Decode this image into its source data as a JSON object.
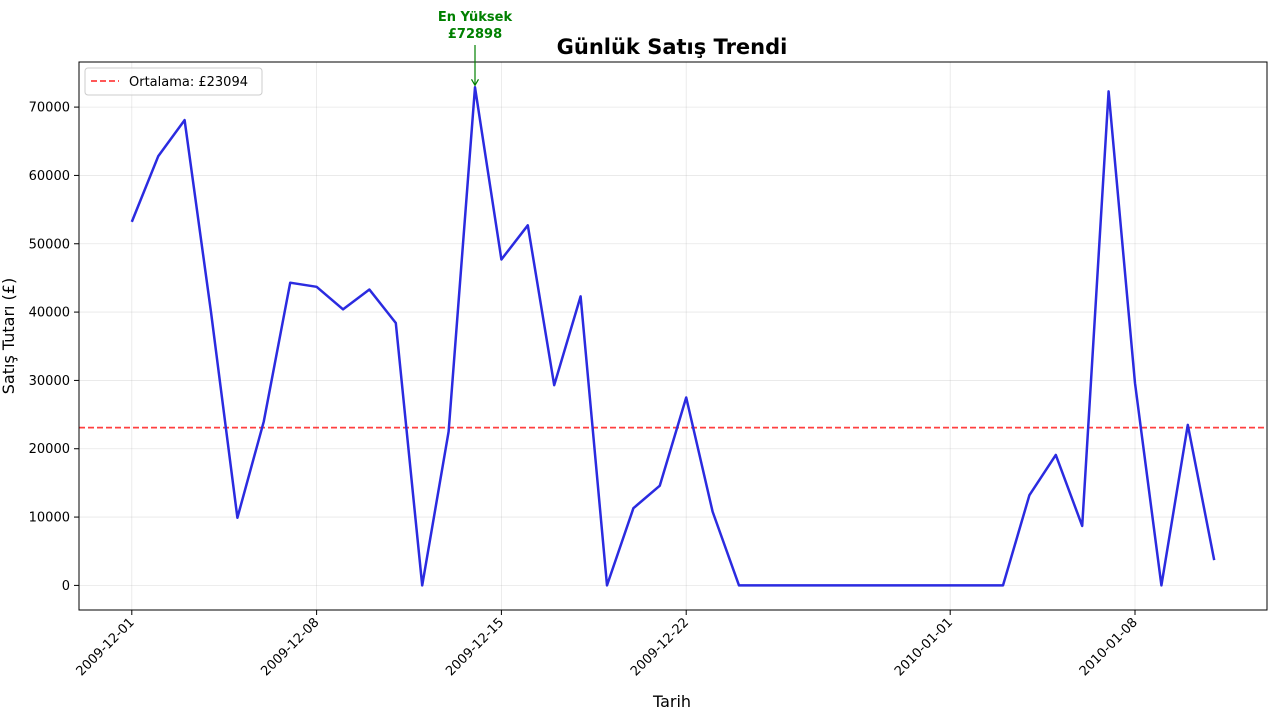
{
  "chart_data": {
    "type": "line",
    "title": "Günlük Satış Trendi",
    "xlabel": "Tarih",
    "ylabel": "Satış Tutarı (£)",
    "grid": true,
    "legend_placement": "top-left",
    "x_tick_labels": [
      "2009-12-01",
      "2009-12-08",
      "2009-12-15",
      "2009-12-22",
      "2010-01-01",
      "2010-01-08"
    ],
    "y_ticks": [
      0,
      10000,
      20000,
      30000,
      40000,
      50000,
      60000,
      70000
    ],
    "y_tick_labels": [
      "0",
      "10000",
      "20000",
      "30000",
      "40000",
      "50000",
      "60000",
      "70000"
    ],
    "ylim": [
      -3600,
      76600
    ],
    "xlim": [
      "2009-11-29",
      "2010-01-13"
    ],
    "series": [
      {
        "color": "#2b2be0",
        "points": [
          [
            "2009-12-01",
            53200
          ],
          [
            "2009-12-02",
            62800
          ],
          [
            "2009-12-03",
            68100
          ],
          [
            "2009-12-04",
            40000
          ],
          [
            "2009-12-05",
            9900
          ],
          [
            "2009-12-06",
            24000
          ],
          [
            "2009-12-07",
            44300
          ],
          [
            "2009-12-08",
            43700
          ],
          [
            "2009-12-09",
            40400
          ],
          [
            "2009-12-10",
            43300
          ],
          [
            "2009-12-11",
            38400
          ],
          [
            "2009-12-12",
            0
          ],
          [
            "2009-12-13",
            22500
          ],
          [
            "2009-12-14",
            72898
          ],
          [
            "2009-12-15",
            47700
          ],
          [
            "2009-12-16",
            52700
          ],
          [
            "2009-12-17",
            29300
          ],
          [
            "2009-12-18",
            42300
          ],
          [
            "2009-12-19",
            0
          ],
          [
            "2009-12-20",
            11300
          ],
          [
            "2009-12-21",
            14600
          ],
          [
            "2009-12-22",
            27500
          ],
          [
            "2009-12-23",
            10800
          ],
          [
            "2009-12-24",
            0
          ],
          [
            "2010-01-03",
            0
          ],
          [
            "2010-01-04",
            13200
          ],
          [
            "2010-01-05",
            19100
          ],
          [
            "2010-01-06",
            8700
          ],
          [
            "2010-01-07",
            72300
          ],
          [
            "2010-01-08",
            29600
          ],
          [
            "2010-01-09",
            0
          ],
          [
            "2010-01-10",
            23500
          ],
          [
            "2010-01-11",
            3700
          ]
        ]
      }
    ],
    "mean_line": {
      "value": 23094,
      "color": "#ff0000",
      "label": "Ortalama: £23094"
    },
    "annotation": {
      "line1": "En Yüksek",
      "line2": "£72898",
      "x": "2009-12-14",
      "y": 72898,
      "color": "#008000"
    }
  }
}
